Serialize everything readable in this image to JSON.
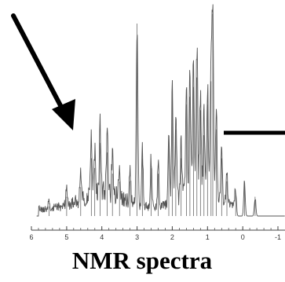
{
  "chart_data": {
    "type": "line",
    "title": "",
    "caption": "NMR spectra",
    "xlabel": "",
    "ylabel": "",
    "x_axis_reversed": true,
    "xlim": [
      6,
      -1.2
    ],
    "ylim": [
      0,
      100
    ],
    "grid": false,
    "xticks": [
      {
        "value": 6,
        "label": "6"
      },
      {
        "value": 5,
        "label": "5"
      },
      {
        "value": 4,
        "label": "4"
      },
      {
        "value": 3,
        "label": "3"
      },
      {
        "value": 2,
        "label": "2"
      },
      {
        "value": 1,
        "label": "1"
      },
      {
        "value": 0,
        "label": "0"
      },
      {
        "value": -1,
        "label": "-1"
      }
    ],
    "peaks": [
      {
        "ppm": 5.5,
        "intensity": 5
      },
      {
        "ppm": 5.0,
        "intensity": 10
      },
      {
        "ppm": 4.6,
        "intensity": 15
      },
      {
        "ppm": 4.3,
        "intensity": 30
      },
      {
        "ppm": 4.2,
        "intensity": 25
      },
      {
        "ppm": 4.05,
        "intensity": 38
      },
      {
        "ppm": 3.85,
        "intensity": 33
      },
      {
        "ppm": 3.7,
        "intensity": 22
      },
      {
        "ppm": 3.5,
        "intensity": 18
      },
      {
        "ppm": 3.2,
        "intensity": 18
      },
      {
        "ppm": 3.0,
        "intensity": 100
      },
      {
        "ppm": 2.85,
        "intensity": 30
      },
      {
        "ppm": 2.6,
        "intensity": 25
      },
      {
        "ppm": 2.4,
        "intensity": 22
      },
      {
        "ppm": 2.1,
        "intensity": 40
      },
      {
        "ppm": 2.0,
        "intensity": 60
      },
      {
        "ppm": 1.9,
        "intensity": 45
      },
      {
        "ppm": 1.75,
        "intensity": 30
      },
      {
        "ppm": 1.6,
        "intensity": 58
      },
      {
        "ppm": 1.5,
        "intensity": 62
      },
      {
        "ppm": 1.4,
        "intensity": 67
      },
      {
        "ppm": 1.3,
        "intensity": 72
      },
      {
        "ppm": 1.2,
        "intensity": 55
      },
      {
        "ppm": 1.1,
        "intensity": 42
      },
      {
        "ppm": 1.0,
        "intensity": 58
      },
      {
        "ppm": 0.9,
        "intensity": 70
      },
      {
        "ppm": 0.85,
        "intensity": 105
      },
      {
        "ppm": 0.75,
        "intensity": 45
      },
      {
        "ppm": 0.6,
        "intensity": 30
      },
      {
        "ppm": 0.45,
        "intensity": 18
      },
      {
        "ppm": 0.2,
        "intensity": 12
      },
      {
        "ppm": -0.05,
        "intensity": 18
      },
      {
        "ppm": -0.35,
        "intensity": 10
      }
    ]
  },
  "annotations": {
    "arrow_icon": "diagonal-arrow-pointing-down-right",
    "marker_icon": "horizontal-bar-marker"
  },
  "colors": {
    "trace": "#555555",
    "axis": "#444444",
    "arrow": "#000000",
    "caption": "#000000"
  }
}
